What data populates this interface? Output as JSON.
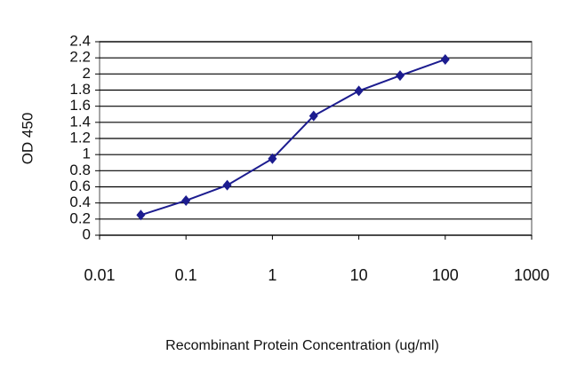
{
  "chart_data": {
    "type": "line",
    "x_label": "Recombinant Protein Concentration (ug/ml)",
    "y_label": "OD 450",
    "x": [
      0.03,
      0.1,
      0.3,
      1,
      3,
      10,
      30,
      100
    ],
    "series": [
      {
        "color": "#1c1c8f",
        "values": [
          0.25,
          0.43,
          0.62,
          0.95,
          1.48,
          1.79,
          1.98,
          2.18
        ]
      }
    ],
    "xlim": [
      0.01,
      1000
    ],
    "xticks": [
      0.01,
      0.1,
      1,
      10,
      100,
      1000
    ],
    "x_log": true,
    "ylim": [
      0,
      2.4
    ],
    "yticks": [
      0,
      0.2,
      0.4,
      0.6,
      0.8,
      1,
      1.2,
      1.4,
      1.6,
      1.8,
      2,
      2.2,
      2.4
    ],
    "grid": true
  }
}
